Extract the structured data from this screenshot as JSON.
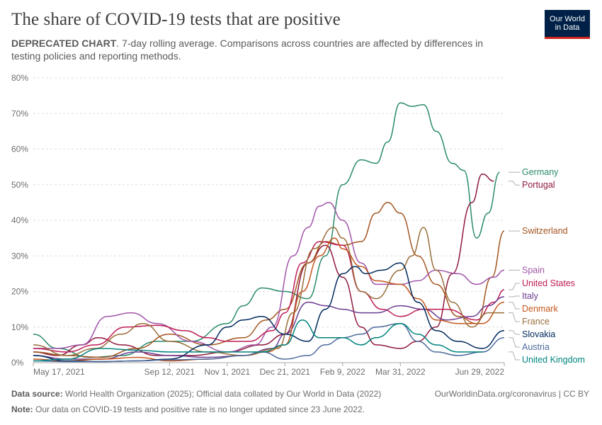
{
  "header": {
    "title": "The share of COVID-19 tests that are positive",
    "subtitle_bold": "DEPRECATED CHART",
    "subtitle_rest": ". 7-day rolling average. Comparisons across countries are affected by differences in testing policies and reporting methods."
  },
  "logo": {
    "line1": "Our World",
    "line2": "in Data",
    "bg": "#002147",
    "accent": "#ce261e"
  },
  "footer": {
    "source_label": "Data source:",
    "source_text": " World Health Organization (2025); Official data collated by Our World in Data (2022)",
    "url": "OurWorldinData.org/coronavirus | CC BY",
    "note_label": "Note:",
    "note_text": " Our data on COVID-19 tests and positive rate is no longer updated since 23 June 2022."
  },
  "chart_data": {
    "type": "line",
    "y_unit": "%",
    "ylim": [
      0,
      80
    ],
    "y_ticks": [
      0,
      10,
      20,
      30,
      40,
      50,
      60,
      70,
      80
    ],
    "y_tick_labels": [
      "0%",
      "10%",
      "20%",
      "30%",
      "40%",
      "50%",
      "60%",
      "70%",
      "80%"
    ],
    "x_range": [
      "2021-05-17",
      "2022-06-29"
    ],
    "x_ticks": [
      "2021-05-17",
      "2021-09-12",
      "2021-11-01",
      "2021-12-21",
      "2022-02-09",
      "2022-03-31",
      "2022-06-29"
    ],
    "x_tick_labels": [
      "May 17, 2021",
      "Sep 12, 2021",
      "Nov 1, 2021",
      "Dec 21, 2021",
      "Feb 9, 2022",
      "Mar 31, 2022",
      "Jun 29, 2022"
    ],
    "grid": "horizontal-dashed",
    "legend": "right",
    "series": [
      {
        "name": "Germany",
        "color": "#2a8a6a",
        "label_value": 53.5,
        "x": [
          "2021-05-17",
          "2021-06-07",
          "2021-07-05",
          "2021-08-02",
          "2021-09-01",
          "2021-10-01",
          "2021-11-01",
          "2021-11-15",
          "2021-12-01",
          "2021-12-21",
          "2022-01-10",
          "2022-01-25",
          "2022-02-09",
          "2022-02-25",
          "2022-03-10",
          "2022-03-20",
          "2022-03-31",
          "2022-04-10",
          "2022-04-20",
          "2022-05-01",
          "2022-05-15",
          "2022-05-25",
          "2022-06-05",
          "2022-06-15",
          "2022-06-25"
        ],
        "y": [
          8,
          4,
          1.5,
          2,
          6,
          6,
          11,
          16,
          21,
          20,
          18,
          30,
          50,
          57,
          56,
          62,
          73,
          72,
          72.5,
          65,
          56,
          54,
          35,
          42,
          53.5
        ]
      },
      {
        "name": "Portugal",
        "color": "#8f1a3c",
        "label_value": 51,
        "x": [
          "2021-05-17",
          "2021-06-07",
          "2021-06-28",
          "2021-07-12",
          "2021-08-02",
          "2021-09-01",
          "2021-10-01",
          "2021-11-01",
          "2021-12-01",
          "2021-12-21",
          "2022-01-10",
          "2022-01-25",
          "2022-02-09",
          "2022-02-25",
          "2022-03-10",
          "2022-03-31",
          "2022-04-15",
          "2022-05-01",
          "2022-05-15",
          "2022-06-01",
          "2022-06-10",
          "2022-06-20"
        ],
        "y": [
          3,
          2,
          5,
          7,
          5,
          2,
          2,
          3,
          5,
          8,
          28,
          33,
          24,
          10,
          5,
          4,
          6,
          10,
          25,
          45,
          53,
          51
        ]
      },
      {
        "name": "Switzerland",
        "color": "#a3541f",
        "label_value": 37,
        "x": [
          "2021-05-17",
          "2021-06-15",
          "2021-07-15",
          "2021-08-15",
          "2021-09-12",
          "2021-10-15",
          "2021-11-15",
          "2021-12-05",
          "2021-12-21",
          "2022-01-10",
          "2022-01-25",
          "2022-02-09",
          "2022-02-25",
          "2022-03-10",
          "2022-03-20",
          "2022-03-31",
          "2022-04-15",
          "2022-05-01",
          "2022-05-20",
          "2022-06-05",
          "2022-06-18",
          "2022-06-29"
        ],
        "y": [
          3,
          2,
          1.5,
          4,
          8,
          5,
          7,
          12,
          15,
          28,
          34,
          33,
          34,
          42,
          45,
          42,
          30,
          22,
          13,
          11,
          24,
          37
        ]
      },
      {
        "name": "Spain",
        "color": "#a154a8",
        "label_value": 26,
        "x": [
          "2021-05-17",
          "2021-06-07",
          "2021-06-28",
          "2021-07-20",
          "2021-08-10",
          "2021-09-01",
          "2021-10-01",
          "2021-11-01",
          "2021-11-25",
          "2021-12-10",
          "2021-12-28",
          "2022-01-10",
          "2022-01-20",
          "2022-01-28",
          "2022-02-09",
          "2022-02-25",
          "2022-03-10",
          "2022-03-31",
          "2022-04-15",
          "2022-05-01",
          "2022-05-20",
          "2022-06-05",
          "2022-06-20",
          "2022-06-29"
        ],
        "y": [
          4,
          4,
          5,
          13,
          14,
          11,
          6,
          3,
          5,
          10,
          30,
          38,
          44,
          45,
          40,
          28,
          22,
          22,
          23,
          26,
          25,
          22,
          24,
          26
        ]
      },
      {
        "name": "United States",
        "color": "#be1c56",
        "label_value": 20.5,
        "x": [
          "2021-05-17",
          "2021-06-15",
          "2021-07-10",
          "2021-08-05",
          "2021-09-01",
          "2021-09-25",
          "2021-10-15",
          "2021-11-01",
          "2021-11-20",
          "2021-12-10",
          "2021-12-21",
          "2022-01-05",
          "2022-01-20",
          "2022-02-09",
          "2022-02-25",
          "2022-03-15",
          "2022-03-31",
          "2022-04-20",
          "2022-05-10",
          "2022-06-05",
          "2022-06-20",
          "2022-06-29"
        ],
        "y": [
          4,
          3,
          5,
          10,
          10.5,
          9,
          7,
          6,
          6,
          9,
          14,
          28,
          34,
          33,
          20,
          15,
          13,
          15,
          15,
          12,
          17,
          20.5
        ]
      },
      {
        "name": "Italy",
        "color": "#6c3d91",
        "label_value": 18.5,
        "x": [
          "2021-05-17",
          "2021-06-15",
          "2021-07-15",
          "2021-08-15",
          "2021-09-12",
          "2021-10-15",
          "2021-11-15",
          "2021-12-10",
          "2021-12-21",
          "2022-01-10",
          "2022-01-25",
          "2022-02-09",
          "2022-02-25",
          "2022-03-10",
          "2022-03-31",
          "2022-04-20",
          "2022-05-10",
          "2022-06-01",
          "2022-06-15",
          "2022-06-29"
        ],
        "y": [
          2,
          1,
          1,
          3,
          2,
          1.5,
          2,
          4,
          8,
          17,
          16,
          15,
          14,
          14,
          16,
          15,
          12,
          13,
          16,
          18.5
        ]
      },
      {
        "name": "Denmark",
        "color": "#c4561c",
        "label_value": 17,
        "x": [
          "2021-05-17",
          "2021-06-15",
          "2021-07-15",
          "2021-08-15",
          "2021-09-12",
          "2021-10-15",
          "2021-11-15",
          "2021-12-05",
          "2021-12-21",
          "2022-01-05",
          "2022-01-20",
          "2022-02-02",
          "2022-02-09",
          "2022-02-25",
          "2022-03-10",
          "2022-03-31",
          "2022-04-15",
          "2022-05-01",
          "2022-05-20",
          "2022-06-10",
          "2022-06-29"
        ],
        "y": [
          1,
          0.5,
          1,
          1.5,
          0.5,
          1,
          2,
          3,
          5,
          20,
          30,
          35,
          32,
          27,
          23,
          22,
          18,
          12,
          11,
          11,
          17
        ]
      },
      {
        "name": "France",
        "color": "#996d39",
        "label_value": 14,
        "x": [
          "2021-05-17",
          "2021-06-15",
          "2021-07-10",
          "2021-08-01",
          "2021-08-20",
          "2021-09-12",
          "2021-10-15",
          "2021-11-15",
          "2021-12-15",
          "2021-12-28",
          "2022-01-15",
          "2022-02-01",
          "2022-02-09",
          "2022-02-25",
          "2022-03-10",
          "2022-03-31",
          "2022-04-10",
          "2022-04-20",
          "2022-05-01",
          "2022-05-15",
          "2022-06-01",
          "2022-06-15",
          "2022-06-29"
        ],
        "y": [
          5,
          2,
          4,
          8,
          11,
          6,
          3,
          2,
          4,
          14,
          32,
          38,
          35,
          20,
          18,
          26,
          30,
          38,
          26,
          17,
          10,
          14,
          14
        ]
      },
      {
        "name": "Slovakia",
        "color": "#00295b",
        "label_value": 9,
        "x": [
          "2021-05-17",
          "2021-06-15",
          "2021-07-15",
          "2021-08-15",
          "2021-09-12",
          "2021-10-15",
          "2021-11-01",
          "2021-11-15",
          "2021-12-01",
          "2021-12-21",
          "2022-01-10",
          "2022-01-25",
          "2022-02-09",
          "2022-02-20",
          "2022-03-01",
          "2022-03-15",
          "2022-03-31",
          "2022-04-15",
          "2022-05-01",
          "2022-05-20",
          "2022-06-10",
          "2022-06-29"
        ],
        "y": [
          2,
          0.5,
          0.3,
          0.5,
          1,
          5,
          10,
          12,
          13,
          8,
          6,
          15,
          25,
          27,
          25,
          26,
          28,
          17,
          9,
          6,
          4,
          9
        ]
      },
      {
        "name": "Austria",
        "color": "#4c6a9c",
        "label_value": 7,
        "x": [
          "2021-05-17",
          "2021-06-15",
          "2021-07-15",
          "2021-08-15",
          "2021-09-12",
          "2021-10-15",
          "2021-11-15",
          "2021-12-01",
          "2021-12-21",
          "2022-01-10",
          "2022-01-25",
          "2022-02-09",
          "2022-02-25",
          "2022-03-10",
          "2022-03-31",
          "2022-04-15",
          "2022-05-01",
          "2022-05-20",
          "2022-06-10",
          "2022-06-29"
        ],
        "y": [
          0.5,
          0.3,
          0.3,
          0.5,
          0.8,
          1,
          2,
          3,
          1,
          2,
          5,
          7,
          8,
          10,
          11,
          6,
          3,
          2,
          3,
          7
        ]
      },
      {
        "name": "United Kingdom",
        "color": "#00847e",
        "label_value": 3,
        "x": [
          "2021-05-17",
          "2021-06-15",
          "2021-07-15",
          "2021-08-15",
          "2021-09-12",
          "2021-10-15",
          "2021-11-15",
          "2021-12-01",
          "2021-12-21",
          "2022-01-05",
          "2022-01-20",
          "2022-02-09",
          "2022-02-25",
          "2022-03-10",
          "2022-03-31",
          "2022-04-15",
          "2022-05-01",
          "2022-05-20",
          "2022-06-10"
        ],
        "y": [
          0.5,
          1,
          4,
          3.5,
          3,
          3,
          3,
          3,
          5,
          12,
          7,
          7,
          5,
          7,
          11,
          8,
          5,
          3,
          3
        ]
      }
    ]
  }
}
